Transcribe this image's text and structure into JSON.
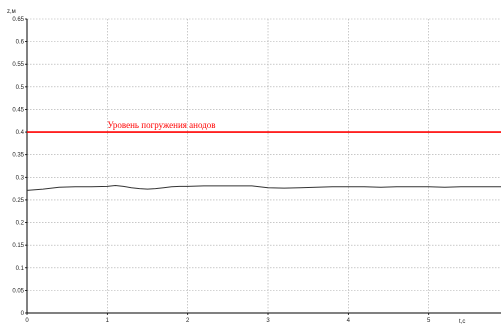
{
  "chart_data": {
    "type": "line",
    "title": "",
    "xlabel": "t,c",
    "ylabel": "z,м",
    "xlim": [
      0,
      5.9
    ],
    "ylim": [
      0,
      0.65
    ],
    "x_ticks": [
      "0",
      "1",
      "2",
      "3",
      "4",
      "5"
    ],
    "y_ticks": [
      "0",
      "0.05",
      "0.1",
      "0.15",
      "0.2",
      "0.25",
      "0.3",
      "0.35",
      "0.4",
      "0.45",
      "0.5",
      "0.55",
      "0.6",
      "0.65"
    ],
    "grid": true,
    "annotation": {
      "text": "Уровень погружения анодов",
      "y": 0.4,
      "color": "#ff0000"
    },
    "series": [
      {
        "color": "#333333",
        "x": [
          0,
          0.2,
          0.4,
          0.6,
          0.8,
          1.0,
          1.1,
          1.2,
          1.3,
          1.4,
          1.5,
          1.6,
          1.7,
          1.8,
          1.9,
          2.0,
          2.2,
          2.4,
          2.6,
          2.8,
          3.0,
          3.2,
          3.4,
          3.6,
          3.8,
          4.0,
          4.2,
          4.4,
          4.6,
          4.8,
          5.0,
          5.2,
          5.4,
          5.6,
          5.9
        ],
        "y": [
          0.271,
          0.274,
          0.278,
          0.279,
          0.279,
          0.28,
          0.282,
          0.28,
          0.277,
          0.275,
          0.274,
          0.275,
          0.277,
          0.279,
          0.28,
          0.28,
          0.281,
          0.281,
          0.281,
          0.281,
          0.277,
          0.276,
          0.277,
          0.278,
          0.279,
          0.279,
          0.279,
          0.278,
          0.279,
          0.279,
          0.279,
          0.278,
          0.279,
          0.279,
          0.279
        ]
      }
    ]
  }
}
